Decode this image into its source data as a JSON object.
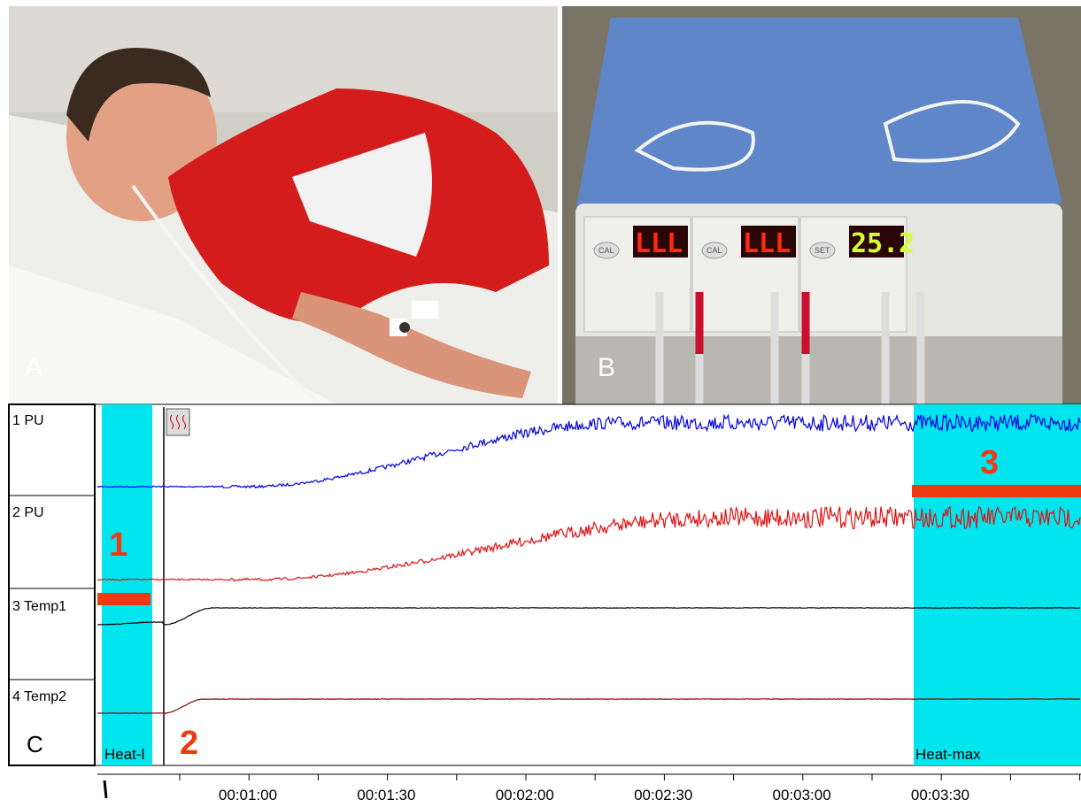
{
  "panels": {
    "a": {
      "label": "A"
    },
    "b": {
      "label": "B",
      "displays": [
        "LLL",
        "LLL",
        "25.2"
      ],
      "buttons": [
        "CAL",
        "CAL",
        "SET"
      ]
    },
    "c": {
      "label": "C",
      "channels": [
        "1 PU",
        "2 PU",
        "3 Temp1",
        "4 Temp2"
      ],
      "events": [
        "Heat-l",
        "Heat-max"
      ],
      "markers": [
        "1",
        "2",
        "3"
      ],
      "time_ticks": [
        "00:01:00",
        "00:01:30",
        "00:02:00",
        "00:02:30",
        "00:03:00",
        "00:03:30"
      ]
    }
  }
}
